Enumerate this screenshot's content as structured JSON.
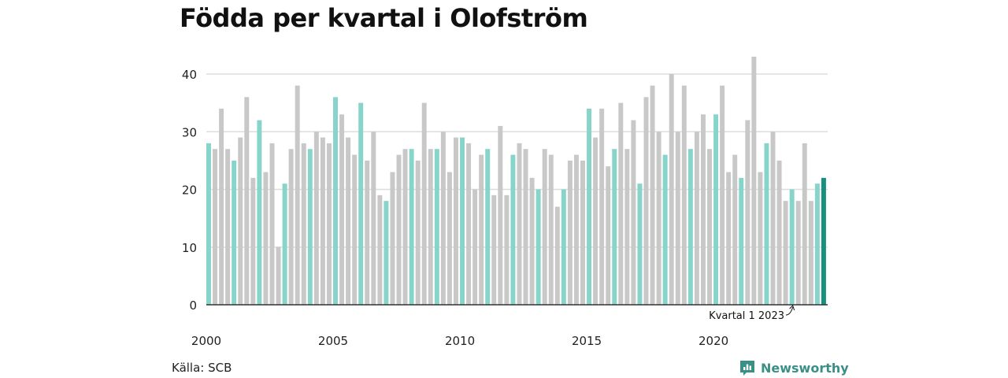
{
  "title": "Födda per kvartal i Olofström",
  "source": "Källa: SCB",
  "brand": {
    "name": "Newsworthy",
    "icon": "newsworthy-logo-icon"
  },
  "colors": {
    "q1": "#87d4cb",
    "other": "#c8c8c8",
    "highlight": "#17917f",
    "grid": "#dddddd",
    "axis": "#333333"
  },
  "chart_data": {
    "type": "bar",
    "title": "Födda per kvartal i Olofström",
    "xlabel": "",
    "ylabel": "",
    "ylim": [
      0,
      45
    ],
    "yticks": [
      0,
      10,
      20,
      30,
      40
    ],
    "xticks": [
      "2000",
      "2005",
      "2010",
      "2015",
      "2020"
    ],
    "grid": true,
    "start_year": 2000,
    "values": [
      28,
      27,
      34,
      27,
      25,
      29,
      36,
      22,
      32,
      23,
      28,
      10,
      21,
      27,
      38,
      28,
      27,
      30,
      29,
      28,
      36,
      33,
      29,
      26,
      35,
      25,
      30,
      19,
      18,
      23,
      26,
      27,
      27,
      25,
      35,
      27,
      27,
      30,
      23,
      29,
      29,
      28,
      20,
      26,
      27,
      19,
      31,
      19,
      26,
      28,
      27,
      22,
      20,
      27,
      26,
      17,
      20,
      25,
      26,
      25,
      34,
      29,
      34,
      24,
      27,
      35,
      27,
      32,
      21,
      36,
      38,
      30,
      26,
      40,
      30,
      38,
      27,
      30,
      33,
      27,
      33,
      38,
      23,
      26,
      22,
      32,
      43,
      23,
      28,
      30,
      25,
      18,
      20,
      18,
      28,
      18,
      21,
      22
    ],
    "annotation": "Kvartal 1 2023"
  }
}
